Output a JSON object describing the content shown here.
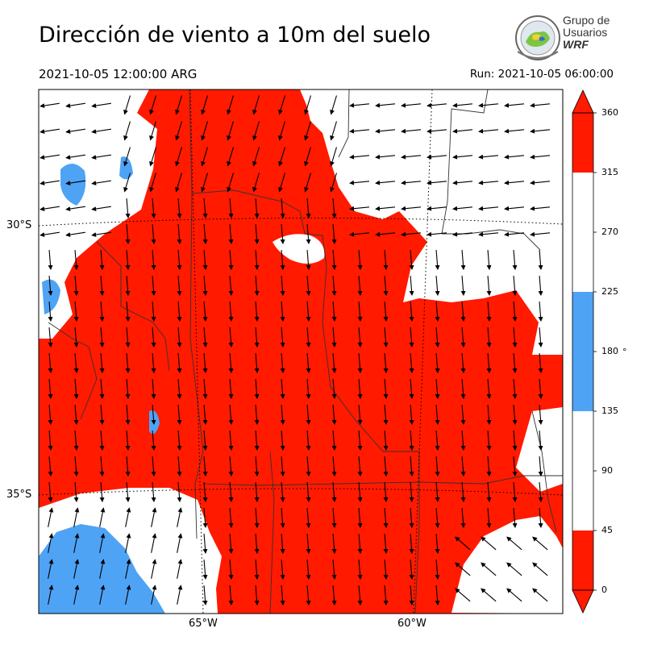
{
  "header": {
    "title": "Dirección de viento a 10m del suelo",
    "valid_time": "2021-10-05 12:00:00 ARG",
    "run_time": "Run: 2021-10-05 06:00:00"
  },
  "logo": {
    "line1": "Grupo de",
    "line2": "Usuarios",
    "line3": "WRF"
  },
  "map": {
    "lat_labels": [
      "30°S",
      "35°S"
    ],
    "lon_labels": [
      "65°W",
      "60°W"
    ],
    "colors": {
      "sector_0_45": "#ff1a00",
      "sector_135_225": "#4fa3f5",
      "sector_315_360": "#ff1a00",
      "other": "#ffffff"
    }
  },
  "colorbar": {
    "ticks": [
      "360",
      "315",
      "270",
      "225",
      "180",
      "135",
      "90",
      "45",
      "0"
    ],
    "unit": "°",
    "segments": [
      {
        "from": 0,
        "to": 45,
        "color": "#ff1a00"
      },
      {
        "from": 45,
        "to": 135,
        "color": "#ffffff"
      },
      {
        "from": 135,
        "to": 225,
        "color": "#4fa3f5"
      },
      {
        "from": 225,
        "to": 315,
        "color": "#ffffff"
      },
      {
        "from": 315,
        "to": 360,
        "color": "#ff1a00"
      }
    ]
  }
}
